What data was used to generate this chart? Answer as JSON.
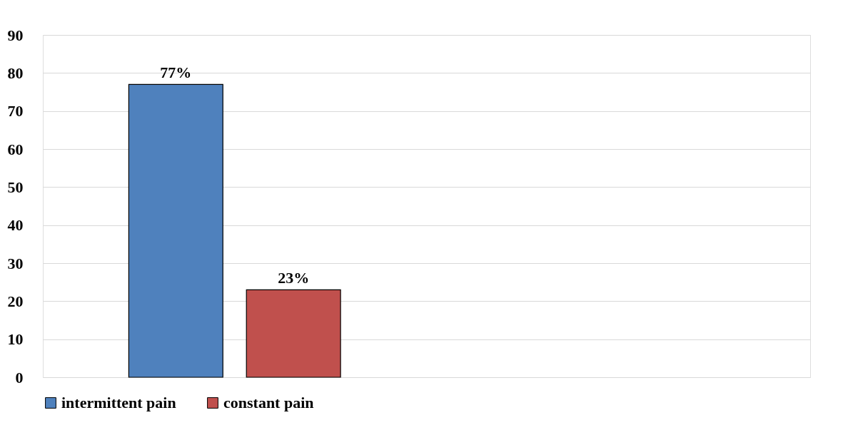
{
  "chart_data": {
    "type": "bar",
    "categories": [
      null,
      null
    ],
    "series": [
      {
        "name": "intermittent pain",
        "color": "#4f81bd",
        "values": [
          77,
          null
        ],
        "value_labels": [
          "77%",
          null
        ]
      },
      {
        "name": "constant pain",
        "color": "#c0504d",
        "values": [
          23,
          null
        ],
        "value_labels": [
          "23%",
          null
        ]
      }
    ],
    "ylim": [
      0,
      90
    ],
    "yticks": [
      0,
      10,
      20,
      30,
      40,
      50,
      60,
      70,
      80,
      90
    ],
    "grid": "y",
    "legend": "bottom",
    "tick_labels": "y"
  }
}
